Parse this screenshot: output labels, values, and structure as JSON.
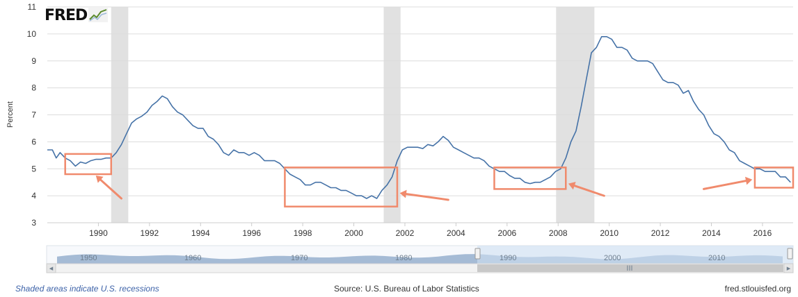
{
  "logo": {
    "text": "FRED",
    "icon": "line-graph-icon"
  },
  "footer": {
    "recession_note": "Shaded areas indicate U.S. recessions",
    "source": "Source: U.S. Bureau of Labor Statistics",
    "site": "fred.stlouisfed.org"
  },
  "navigator": {
    "labels": [
      "1950",
      "1960",
      "1970",
      "1980",
      "1990",
      "2000",
      "2010"
    ],
    "left_arrow": "◂",
    "right_arrow": "▸",
    "grip": "III"
  },
  "colors": {
    "line": "#4572a7",
    "recession": "#e1e1e1",
    "highlight": "#f08a6c",
    "navigator_fill": "#8aa6c8",
    "navigator_selection": "#cfe0f2"
  },
  "chart_data": {
    "type": "line",
    "title": "",
    "xlabel": "",
    "ylabel": "Percent",
    "xlim": [
      1988.0,
      2017.2
    ],
    "ylim": [
      3,
      11
    ],
    "yticks": [
      3,
      4,
      5,
      6,
      7,
      8,
      9,
      10,
      11
    ],
    "xticks": [
      1990,
      1992,
      1994,
      1996,
      1998,
      2000,
      2002,
      2004,
      2006,
      2008,
      2010,
      2012,
      2014,
      2016
    ],
    "grid": true,
    "legend": "none",
    "recessions": [
      [
        1990.5,
        1991.17
      ],
      [
        2001.17,
        2001.83
      ],
      [
        2007.92,
        2009.42
      ]
    ],
    "highlights": [
      {
        "x": [
          1988.7,
          1990.5
        ],
        "y": [
          4.8,
          5.55
        ]
      },
      {
        "x": [
          1997.3,
          2001.7
        ],
        "y": [
          3.6,
          5.05
        ]
      },
      {
        "x": [
          2005.5,
          2008.3
        ],
        "y": [
          4.25,
          5.05
        ]
      },
      {
        "x": [
          2015.7,
          2017.2
        ],
        "y": [
          4.3,
          5.05
        ]
      }
    ],
    "arrows": [
      {
        "from": [
          1990.9,
          3.9
        ],
        "to": [
          1989.9,
          4.75
        ]
      },
      {
        "from": [
          2003.7,
          3.85
        ],
        "to": [
          2001.8,
          4.1
        ]
      },
      {
        "from": [
          2009.8,
          4.0
        ],
        "to": [
          2008.4,
          4.45
        ]
      },
      {
        "from": [
          2013.7,
          4.25
        ],
        "to": [
          2015.6,
          4.6
        ]
      }
    ],
    "series": [
      {
        "x": [
          1988.0,
          1988.2,
          1988.35,
          1988.5,
          1988.7,
          1988.9,
          1989.1,
          1989.3,
          1989.5,
          1989.7,
          1989.9,
          1990.1,
          1990.3,
          1990.5,
          1990.7,
          1990.9,
          1991.1,
          1991.3,
          1991.5,
          1991.7,
          1991.9,
          1992.1,
          1992.3,
          1992.5,
          1992.7,
          1992.9,
          1993.1,
          1993.3,
          1993.5,
          1993.7,
          1993.9,
          1994.1,
          1994.3,
          1994.5,
          1994.7,
          1994.9,
          1995.1,
          1995.3,
          1995.5,
          1995.7,
          1995.9,
          1996.1,
          1996.3,
          1996.5,
          1996.7,
          1996.9,
          1997.1,
          1997.3,
          1997.5,
          1997.7,
          1997.9,
          1998.1,
          1998.3,
          1998.5,
          1998.7,
          1998.9,
          1999.1,
          1999.3,
          1999.5,
          1999.7,
          1999.9,
          2000.1,
          2000.3,
          2000.5,
          2000.7,
          2000.9,
          2001.1,
          2001.3,
          2001.5,
          2001.7,
          2001.9,
          2002.1,
          2002.3,
          2002.5,
          2002.7,
          2002.9,
          2003.1,
          2003.3,
          2003.5,
          2003.7,
          2003.9,
          2004.1,
          2004.3,
          2004.5,
          2004.7,
          2004.9,
          2005.1,
          2005.3,
          2005.5,
          2005.7,
          2005.9,
          2006.1,
          2006.3,
          2006.5,
          2006.7,
          2006.9,
          2007.1,
          2007.3,
          2007.5,
          2007.7,
          2007.9,
          2008.1,
          2008.3,
          2008.5,
          2008.7,
          2008.9,
          2009.1,
          2009.3,
          2009.5,
          2009.7,
          2009.9,
          2010.1,
          2010.3,
          2010.5,
          2010.7,
          2010.9,
          2011.1,
          2011.3,
          2011.5,
          2011.7,
          2011.9,
          2012.1,
          2012.3,
          2012.5,
          2012.7,
          2012.9,
          2013.1,
          2013.3,
          2013.5,
          2013.7,
          2013.9,
          2014.1,
          2014.3,
          2014.5,
          2014.7,
          2014.9,
          2015.1,
          2015.3,
          2015.5,
          2015.7,
          2015.9,
          2016.1,
          2016.3,
          2016.5,
          2016.7,
          2016.9,
          2017.1
        ],
        "values": [
          5.7,
          5.7,
          5.4,
          5.6,
          5.4,
          5.3,
          5.1,
          5.25,
          5.2,
          5.3,
          5.35,
          5.35,
          5.4,
          5.4,
          5.6,
          5.9,
          6.3,
          6.7,
          6.85,
          6.95,
          7.1,
          7.35,
          7.5,
          7.7,
          7.6,
          7.3,
          7.1,
          7.0,
          6.8,
          6.6,
          6.5,
          6.5,
          6.2,
          6.1,
          5.9,
          5.6,
          5.5,
          5.7,
          5.6,
          5.6,
          5.5,
          5.6,
          5.5,
          5.3,
          5.3,
          5.3,
          5.2,
          5.0,
          4.8,
          4.7,
          4.6,
          4.4,
          4.4,
          4.5,
          4.5,
          4.4,
          4.3,
          4.3,
          4.2,
          4.2,
          4.1,
          4.0,
          4.0,
          3.9,
          4.0,
          3.9,
          4.2,
          4.4,
          4.7,
          5.3,
          5.7,
          5.8,
          5.8,
          5.8,
          5.75,
          5.9,
          5.85,
          6.0,
          6.2,
          6.05,
          5.8,
          5.7,
          5.6,
          5.5,
          5.4,
          5.4,
          5.3,
          5.1,
          5.0,
          4.9,
          4.9,
          4.75,
          4.65,
          4.65,
          4.5,
          4.45,
          4.5,
          4.5,
          4.6,
          4.7,
          4.9,
          5.0,
          5.4,
          6.0,
          6.4,
          7.3,
          8.3,
          9.3,
          9.5,
          9.9,
          9.9,
          9.8,
          9.5,
          9.5,
          9.4,
          9.1,
          9.0,
          9.0,
          9.0,
          8.9,
          8.6,
          8.3,
          8.2,
          8.2,
          8.1,
          7.8,
          7.9,
          7.5,
          7.2,
          7.0,
          6.6,
          6.3,
          6.2,
          6.0,
          5.7,
          5.6,
          5.3,
          5.2,
          5.1,
          5.0,
          5.0,
          4.9,
          4.9,
          4.9,
          4.7,
          4.7,
          4.5
        ]
      }
    ]
  }
}
